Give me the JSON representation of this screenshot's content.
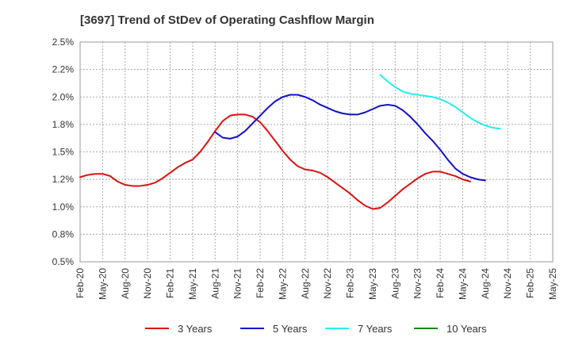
{
  "chart_data": {
    "type": "line",
    "title": "[3697]  Trend of StDev of Operating Cashflow Margin",
    "xlabel": "",
    "ylabel": "",
    "ylim": [
      0.5,
      2.5
    ],
    "y_ticks": [
      0.5,
      0.75,
      1.0,
      1.25,
      1.5,
      1.75,
      2.0,
      2.25,
      2.5
    ],
    "y_tick_labels": [
      "0.5%",
      "0.8%",
      "1.0%",
      "1.2%",
      "1.5%",
      "1.8%",
      "2.0%",
      "2.2%",
      "2.5%"
    ],
    "x_tick_labels": [
      "Feb-20",
      "May-20",
      "Aug-20",
      "Nov-20",
      "Feb-21",
      "May-21",
      "Aug-21",
      "Nov-21",
      "Feb-22",
      "May-22",
      "Aug-22",
      "Nov-22",
      "Feb-23",
      "May-23",
      "Aug-23",
      "Nov-23",
      "Feb-24",
      "May-24",
      "Aug-24",
      "Nov-24",
      "Feb-25",
      "May-25"
    ],
    "grid": true,
    "legend_position": "bottom",
    "series": [
      {
        "name": "3 Years",
        "color": "#dd1111",
        "values": [
          1.27,
          1.29,
          1.3,
          1.3,
          1.28,
          1.23,
          1.2,
          1.19,
          1.19,
          1.2,
          1.22,
          1.26,
          1.31,
          1.36,
          1.4,
          1.43,
          1.5,
          1.59,
          1.69,
          1.78,
          1.83,
          1.84,
          1.84,
          1.82,
          1.77,
          1.69,
          1.6,
          1.51,
          1.43,
          1.37,
          1.34,
          1.33,
          1.31,
          1.27,
          1.22,
          1.17,
          1.12,
          1.06,
          1.01,
          0.98,
          0.99,
          1.04,
          1.1,
          1.16,
          1.21,
          1.26,
          1.3,
          1.32,
          1.32,
          1.3,
          1.28,
          1.25,
          1.23
        ]
      },
      {
        "name": "5 Years",
        "color": "#1111cc",
        "values": [
          null,
          null,
          null,
          null,
          null,
          null,
          null,
          null,
          null,
          null,
          null,
          null,
          null,
          null,
          null,
          null,
          null,
          null,
          1.68,
          1.63,
          1.62,
          1.64,
          1.69,
          1.76,
          1.83,
          1.9,
          1.96,
          2.0,
          2.02,
          2.02,
          2.0,
          1.97,
          1.93,
          1.9,
          1.87,
          1.85,
          1.84,
          1.84,
          1.86,
          1.89,
          1.92,
          1.93,
          1.92,
          1.88,
          1.82,
          1.75,
          1.67,
          1.6,
          1.52,
          1.43,
          1.35,
          1.3,
          1.27,
          1.25,
          1.24
        ]
      },
      {
        "name": "7 Years",
        "color": "#22eeee",
        "values": [
          null,
          null,
          null,
          null,
          null,
          null,
          null,
          null,
          null,
          null,
          null,
          null,
          null,
          null,
          null,
          null,
          null,
          null,
          null,
          null,
          null,
          null,
          null,
          null,
          null,
          null,
          null,
          null,
          null,
          null,
          null,
          null,
          null,
          null,
          null,
          null,
          null,
          null,
          null,
          null,
          2.2,
          2.14,
          2.09,
          2.05,
          2.03,
          2.02,
          2.01,
          2.0,
          1.98,
          1.95,
          1.91,
          1.86,
          1.81,
          1.77,
          1.74,
          1.72,
          1.71
        ]
      },
      {
        "name": "10 Years",
        "color": "#118811",
        "values": []
      }
    ]
  }
}
